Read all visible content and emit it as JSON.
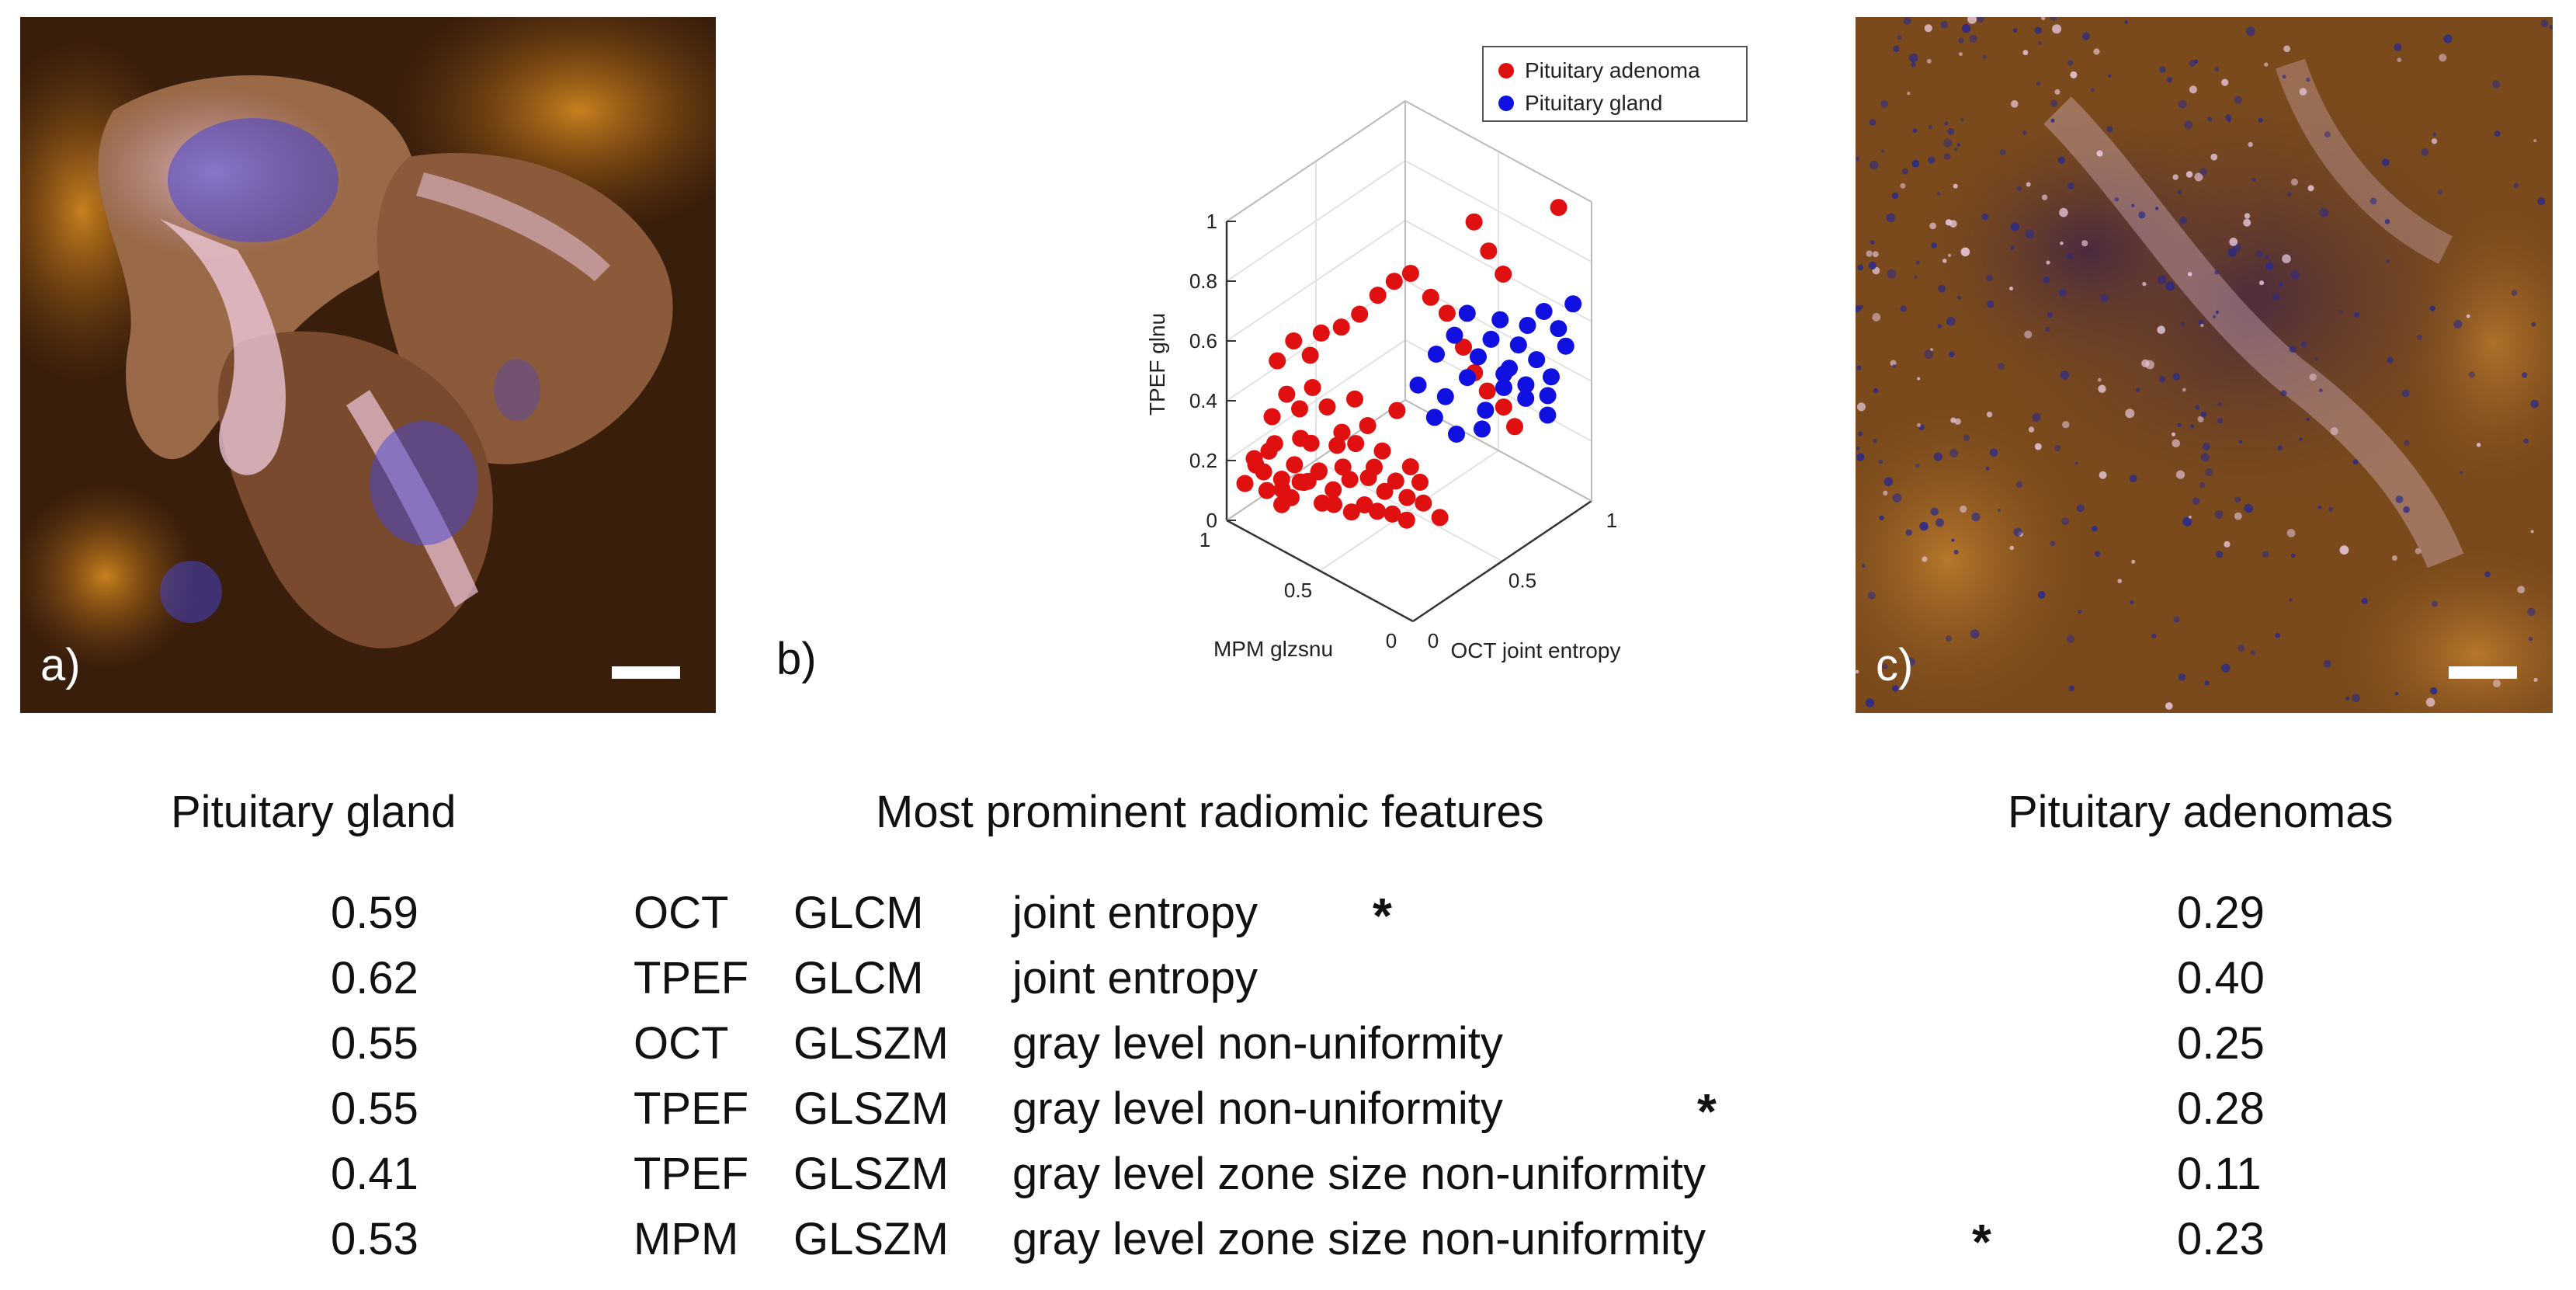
{
  "panels": {
    "a": {
      "letter": "a)"
    },
    "b": {
      "letter": "b)"
    },
    "c": {
      "letter": "c)"
    }
  },
  "colors": {
    "adenoma": "#e01010",
    "gland": "#1010e0",
    "tissue_dark": "#3a1e0c",
    "tissue_orange": "#c8781e",
    "tissue_pink": "#f0c8e0",
    "tissue_blue": "#3c3cdc"
  },
  "chart_data": {
    "type": "scatter",
    "dimensions": 3,
    "xlabel": "MPM glzsnu",
    "ylabel": "OCT joint entropy",
    "zlabel": "TPEF glnu",
    "xlim": [
      0,
      1
    ],
    "ylim": [
      0,
      1
    ],
    "zlim": [
      0,
      1
    ],
    "x_ticks": [
      "0",
      "0.5",
      "1"
    ],
    "y_ticks": [
      "0",
      "0.5",
      "1"
    ],
    "z_ticks": [
      "0",
      "0.2",
      "0.4",
      "0.6",
      "0.8",
      "1"
    ],
    "grid": true,
    "legend_position": "top-right",
    "series": [
      {
        "name": "Pituitary adenoma",
        "color": "#e01010",
        "points": [
          [
            0.05,
            0.05,
            0.12
          ],
          [
            0.08,
            0.08,
            0.18
          ],
          [
            0.1,
            0.05,
            0.22
          ],
          [
            0.12,
            0.1,
            0.1
          ],
          [
            0.15,
            0.08,
            0.25
          ],
          [
            0.18,
            0.12,
            0.15
          ],
          [
            0.2,
            0.06,
            0.3
          ],
          [
            0.22,
            0.15,
            0.2
          ],
          [
            0.25,
            0.1,
            0.12
          ],
          [
            0.28,
            0.18,
            0.28
          ],
          [
            0.3,
            0.12,
            0.18
          ],
          [
            0.32,
            0.08,
            0.35
          ],
          [
            0.35,
            0.15,
            0.22
          ],
          [
            0.38,
            0.2,
            0.15
          ],
          [
            0.4,
            0.1,
            0.26
          ],
          [
            0.42,
            0.18,
            0.32
          ],
          [
            0.45,
            0.22,
            0.2
          ],
          [
            0.48,
            0.15,
            0.28
          ],
          [
            0.5,
            0.25,
            0.12
          ],
          [
            0.52,
            0.18,
            0.36
          ],
          [
            0.55,
            0.22,
            0.24
          ],
          [
            0.58,
            0.28,
            0.18
          ],
          [
            0.6,
            0.2,
            0.3
          ],
          [
            0.62,
            0.3,
            0.22
          ],
          [
            0.65,
            0.25,
            0.14
          ],
          [
            0.68,
            0.32,
            0.28
          ],
          [
            0.7,
            0.28,
            0.2
          ],
          [
            0.72,
            0.35,
            0.16
          ],
          [
            0.75,
            0.3,
            0.26
          ],
          [
            0.78,
            0.38,
            0.12
          ],
          [
            0.1,
            0.15,
            0.32
          ],
          [
            0.15,
            0.18,
            0.4
          ],
          [
            0.2,
            0.2,
            0.36
          ],
          [
            0.25,
            0.22,
            0.44
          ],
          [
            0.3,
            0.25,
            0.38
          ],
          [
            0.35,
            0.28,
            0.3
          ],
          [
            0.4,
            0.3,
            0.42
          ],
          [
            0.45,
            0.32,
            0.34
          ],
          [
            0.5,
            0.35,
            0.26
          ],
          [
            0.55,
            0.38,
            0.4
          ],
          [
            0.08,
            0.2,
            0.48
          ],
          [
            0.12,
            0.25,
            0.54
          ],
          [
            0.18,
            0.28,
            0.5
          ],
          [
            0.22,
            0.3,
            0.58
          ],
          [
            0.28,
            0.35,
            0.6
          ],
          [
            0.33,
            0.4,
            0.64
          ],
          [
            0.38,
            0.45,
            0.7
          ],
          [
            0.42,
            0.5,
            0.74
          ],
          [
            0.46,
            0.55,
            0.76
          ],
          [
            0.52,
            0.6,
            0.68
          ],
          [
            0.56,
            0.65,
            0.62
          ],
          [
            0.6,
            0.7,
            0.5
          ],
          [
            0.64,
            0.72,
            0.42
          ],
          [
            0.68,
            0.75,
            0.36
          ],
          [
            0.72,
            0.8,
            0.3
          ],
          [
            0.76,
            0.82,
            0.24
          ],
          [
            0.58,
            0.78,
            0.88
          ],
          [
            0.62,
            0.82,
            0.78
          ],
          [
            0.66,
            0.86,
            0.7
          ],
          [
            0.9,
            0.92,
            0.98
          ],
          [
            0.2,
            0.1,
            0.08
          ],
          [
            0.26,
            0.14,
            0.16
          ],
          [
            0.34,
            0.18,
            0.1
          ],
          [
            0.44,
            0.24,
            0.08
          ],
          [
            0.54,
            0.28,
            0.1
          ],
          [
            0.64,
            0.34,
            0.08
          ],
          [
            0.16,
            0.04,
            0.2
          ],
          [
            0.24,
            0.06,
            0.16
          ],
          [
            0.36,
            0.08,
            0.22
          ],
          [
            0.46,
            0.12,
            0.16
          ]
        ]
      },
      {
        "name": "Pituitary gland",
        "color": "#1010e0",
        "points": [
          [
            0.55,
            0.6,
            0.5
          ],
          [
            0.6,
            0.65,
            0.56
          ],
          [
            0.62,
            0.7,
            0.62
          ],
          [
            0.66,
            0.72,
            0.48
          ],
          [
            0.7,
            0.75,
            0.54
          ],
          [
            0.72,
            0.78,
            0.6
          ],
          [
            0.75,
            0.8,
            0.44
          ],
          [
            0.78,
            0.82,
            0.52
          ],
          [
            0.8,
            0.85,
            0.58
          ],
          [
            0.82,
            0.88,
            0.46
          ],
          [
            0.84,
            0.9,
            0.62
          ],
          [
            0.86,
            0.92,
            0.4
          ],
          [
            0.88,
            0.94,
            0.56
          ],
          [
            0.9,
            0.96,
            0.5
          ],
          [
            0.92,
            0.98,
            0.64
          ],
          [
            0.58,
            0.62,
            0.36
          ],
          [
            0.64,
            0.68,
            0.42
          ],
          [
            0.68,
            0.74,
            0.3
          ],
          [
            0.74,
            0.78,
            0.38
          ],
          [
            0.8,
            0.84,
            0.34
          ],
          [
            0.86,
            0.9,
            0.28
          ],
          [
            0.5,
            0.55,
            0.4
          ],
          [
            0.56,
            0.58,
            0.3
          ],
          [
            0.62,
            0.64,
            0.24
          ],
          [
            0.7,
            0.7,
            0.26
          ],
          [
            0.76,
            0.76,
            0.44
          ],
          [
            0.82,
            0.82,
            0.4
          ],
          [
            0.88,
            0.88,
            0.36
          ]
        ]
      }
    ]
  },
  "table": {
    "headers": {
      "gland": "Pituitary gland",
      "features": "Most prominent radiomic features",
      "adenoma": "Pituitary adenomas"
    },
    "rows": [
      {
        "gland": "0.59",
        "modality": "OCT",
        "matrix": "GLCM",
        "feature": "joint entropy",
        "star": "*",
        "adenoma": "0.29"
      },
      {
        "gland": "0.62",
        "modality": "TPEF",
        "matrix": "GLCM",
        "feature": "joint entropy",
        "star": "",
        "adenoma": "0.40"
      },
      {
        "gland": "0.55",
        "modality": "OCT",
        "matrix": "GLSZM",
        "feature": "gray level non-uniformity",
        "star": "",
        "adenoma": "0.25"
      },
      {
        "gland": "0.55",
        "modality": "TPEF",
        "matrix": "GLSZM",
        "feature": "gray level non-uniformity",
        "star": "*",
        "adenoma": "0.28"
      },
      {
        "gland": "0.41",
        "modality": "TPEF",
        "matrix": "GLSZM",
        "feature": "gray level zone size non-uniformity",
        "star": "",
        "adenoma": "0.11"
      },
      {
        "gland": "0.53",
        "modality": "MPM",
        "matrix": "GLSZM",
        "feature": "gray level zone size non-uniformity",
        "star": "*",
        "adenoma": "0.23"
      }
    ]
  }
}
